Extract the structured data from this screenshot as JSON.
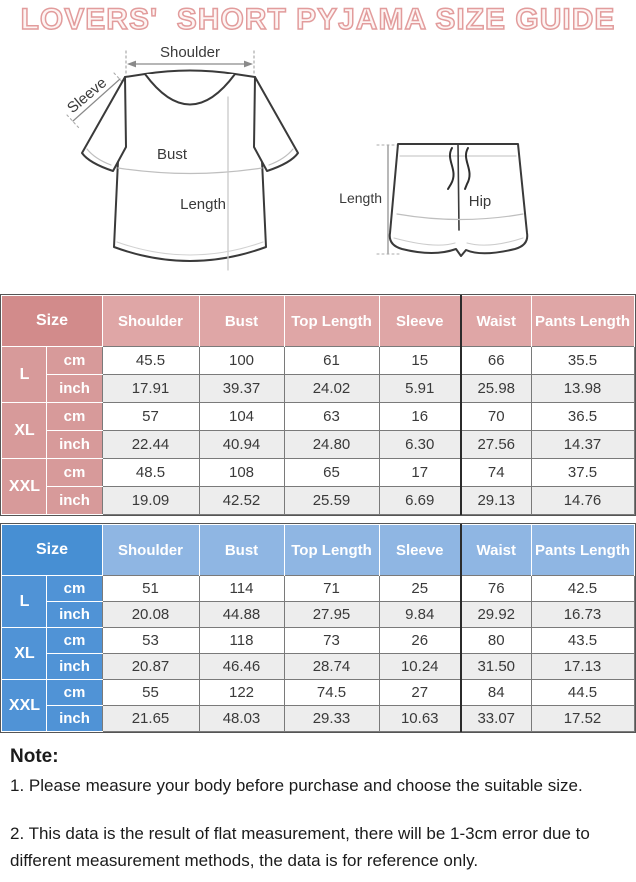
{
  "title": "LOVERS'  SHORT PYJAMA SIZE GUIDE",
  "title_colors": {
    "outline": "#e29c9c",
    "fill": "#fdf4f3"
  },
  "diagram": {
    "shirt": {
      "shoulder": "Shoulder",
      "sleeve": "Sleeve",
      "bust": "Bust",
      "length": "Length"
    },
    "shorts": {
      "length": "Length",
      "hip": "Hip"
    }
  },
  "tables": [
    {
      "id": "pink",
      "theme": {
        "accent": "#d28b8b",
        "light": "#dfa6a6",
        "label": "#d79a9a"
      },
      "size_header": "Size",
      "columns": [
        "Shoulder",
        "Bust",
        "Top Length",
        "Sleeve",
        "Waist",
        "Pants Length"
      ],
      "unit_labels": [
        "cm",
        "inch"
      ],
      "rows": [
        {
          "size": "L",
          "cm": [
            "45.5",
            "100",
            "61",
            "15",
            "66",
            "35.5"
          ],
          "inch": [
            "17.91",
            "39.37",
            "24.02",
            "5.91",
            "25.98",
            "13.98"
          ]
        },
        {
          "size": "XL",
          "cm": [
            "57",
            "104",
            "63",
            "16",
            "70",
            "36.5"
          ],
          "inch": [
            "22.44",
            "40.94",
            "24.80",
            "6.30",
            "27.56",
            "14.37"
          ]
        },
        {
          "size": "XXL",
          "cm": [
            "48.5",
            "108",
            "65",
            "17",
            "74",
            "37.5"
          ],
          "inch": [
            "19.09",
            "42.52",
            "25.59",
            "6.69",
            "29.13",
            "14.76"
          ]
        }
      ]
    },
    {
      "id": "blue",
      "theme": {
        "accent": "#478fd3",
        "light": "#8fb6e3",
        "label": "#5093d6"
      },
      "size_header": "Size",
      "columns": [
        "Shoulder",
        "Bust",
        "Top Length",
        "Sleeve",
        "Waist",
        "Pants Length"
      ],
      "unit_labels": [
        "cm",
        "inch"
      ],
      "rows": [
        {
          "size": "L",
          "cm": [
            "51",
            "114",
            "71",
            "25",
            "76",
            "42.5"
          ],
          "inch": [
            "20.08",
            "44.88",
            "27.95",
            "9.84",
            "29.92",
            "16.73"
          ]
        },
        {
          "size": "XL",
          "cm": [
            "53",
            "118",
            "73",
            "26",
            "80",
            "43.5"
          ],
          "inch": [
            "20.87",
            "46.46",
            "28.74",
            "10.24",
            "31.50",
            "17.13"
          ]
        },
        {
          "size": "XXL",
          "cm": [
            "55",
            "122",
            "74.5",
            "27",
            "84",
            "44.5"
          ],
          "inch": [
            "21.65",
            "48.03",
            "29.33",
            "10.63",
            "33.07",
            "17.52"
          ]
        }
      ]
    }
  ],
  "notes": {
    "heading": "Note:",
    "items": [
      "1. Please measure your body before purchase and choose the suitable size.",
      "2. This data is the result of flat measurement, there will be 1-3cm error due to different measurement methods, the data is for reference only."
    ]
  }
}
